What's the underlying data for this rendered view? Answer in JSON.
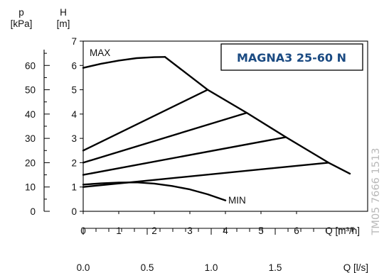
{
  "chart_data": {
    "type": "line",
    "title": "MAGNA3 25-60 N",
    "watermark": "TM05 7666 1513",
    "left_axis_p": {
      "label_line1": "p",
      "label_line2": "[kPa]",
      "range": [
        0,
        70
      ],
      "ticks": [
        0,
        10,
        20,
        30,
        40,
        50,
        60
      ],
      "tick_labels": [
        "0",
        "10",
        "20",
        "30",
        "40",
        "50",
        "60"
      ]
    },
    "left_axis_h": {
      "label_line1": "H",
      "label_line2": "[m]",
      "range": [
        0,
        7
      ],
      "ticks": [
        0,
        1,
        2,
        3,
        4,
        5,
        6,
        7
      ],
      "tick_labels": [
        "0",
        "1",
        "2",
        "3",
        "4",
        "5",
        "6",
        "7"
      ]
    },
    "x_axis_q_m3h": {
      "label": "Q [m³/h]",
      "range": [
        0,
        8
      ],
      "ticks": [
        0,
        1,
        2,
        3,
        4,
        5,
        6
      ],
      "tick_labels": [
        "0",
        "1",
        "2",
        "3",
        "4",
        "5",
        "6"
      ]
    },
    "x_axis_q_ls": {
      "label": "Q [l/s]",
      "range": [
        0,
        2.222
      ],
      "ticks": [
        0.0,
        0.5,
        1.0,
        1.5
      ],
      "tick_labels": [
        "0.0",
        "0.5",
        "1.0",
        "1.5"
      ],
      "minor_step": 0.1
    },
    "series": [
      {
        "name": "MAX",
        "x": [
          0,
          0.5,
          1.0,
          1.5,
          2.0,
          2.3
        ],
        "y": [
          5.9,
          6.07,
          6.2,
          6.3,
          6.34,
          6.35
        ]
      },
      {
        "name": "MIN",
        "x": [
          0,
          0.5,
          1.0,
          1.5,
          2.0,
          2.5,
          3.0,
          3.5,
          4.0
        ],
        "y": [
          1.1,
          1.15,
          1.18,
          1.19,
          1.14,
          1.04,
          0.9,
          0.7,
          0.45
        ]
      },
      {
        "name": "",
        "x": [
          2.3,
          3.5,
          4.6,
          5.7,
          6.9,
          7.5
        ],
        "y": [
          6.35,
          5.0,
          4.05,
          3.05,
          2.0,
          1.55
        ]
      },
      {
        "name": "",
        "x": [
          0,
          3.5
        ],
        "y": [
          2.5,
          5.0
        ]
      },
      {
        "name": "",
        "x": [
          0,
          4.6
        ],
        "y": [
          2.0,
          4.05
        ]
      },
      {
        "name": "",
        "x": [
          0,
          5.7
        ],
        "y": [
          1.5,
          3.05
        ]
      },
      {
        "name": "",
        "x": [
          0,
          6.9
        ],
        "y": [
          1.0,
          2.0
        ]
      }
    ]
  }
}
